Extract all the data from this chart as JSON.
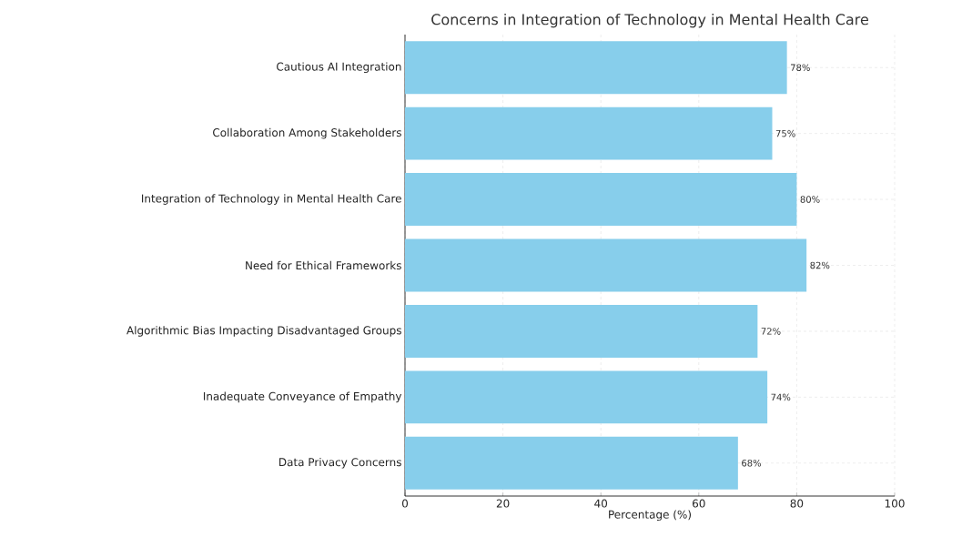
{
  "chart_data": {
    "type": "bar",
    "orientation": "horizontal",
    "title": "Concerns in Integration of Technology in Mental Health Care",
    "xlabel": "Percentage (%)",
    "categories": [
      "Cautious AI Integration",
      "Collaboration Among Stakeholders",
      "Integration of Technology in Mental Health Care",
      "Need for Ethical Frameworks",
      "Algorithmic Bias Impacting Disadvantaged Groups",
      "Inadequate Conveyance of Empathy",
      "Data Privacy Concerns"
    ],
    "values": [
      78,
      75,
      80,
      82,
      72,
      74,
      68
    ],
    "value_labels": [
      "78%",
      "75%",
      "80%",
      "82%",
      "72%",
      "74%",
      "68%"
    ],
    "color": "#87ceeb",
    "xlim": [
      0,
      100
    ],
    "xticks": [
      0,
      20,
      40,
      60,
      80,
      100
    ],
    "grid": true
  }
}
